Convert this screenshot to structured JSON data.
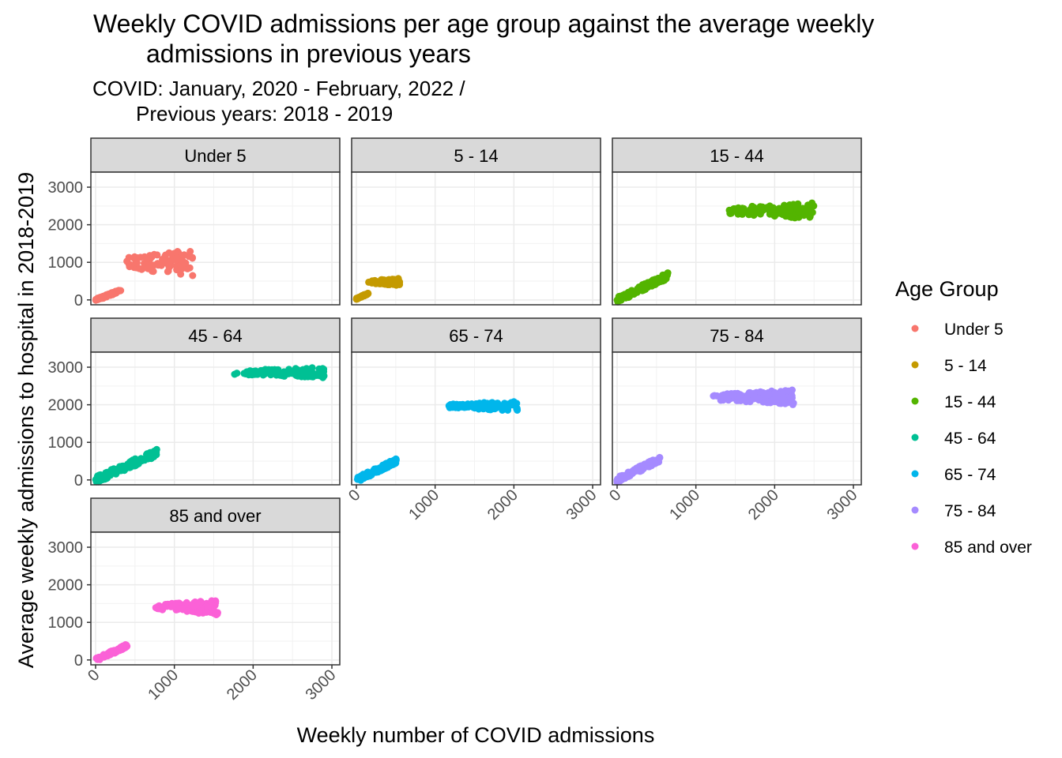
{
  "chart_data": {
    "type": "scatter",
    "title": "Weekly COVID admissions per age group against the average weekly admissions in previous years",
    "title_lines": [
      "Weekly COVID admissions per age group against the average weekly",
      "admissions in previous years"
    ],
    "subtitle_lines": [
      "COVID: January, 2020 - February, 2022 /",
      "Previous years: 2018 - 2019"
    ],
    "xlabel": "Weekly number of COVID admissions",
    "ylabel": "Average weekly admissions to hospital in 2018-2019",
    "xlim": [
      0,
      3000
    ],
    "ylim": [
      0,
      3000
    ],
    "x_ticks": [
      "0",
      "1000",
      "2000",
      "3000"
    ],
    "y_ticks": [
      "0",
      "1000",
      "2000",
      "3000"
    ],
    "grid": true,
    "legend": {
      "title": "Age Group",
      "position": "right",
      "items": [
        {
          "label": "Under 5",
          "color": "#F8766D"
        },
        {
          "label": "5 - 14",
          "color": "#C49A00"
        },
        {
          "label": "15 - 44",
          "color": "#53B400"
        },
        {
          "label": "45 - 64",
          "color": "#00C094"
        },
        {
          "label": "65 - 74",
          "color": "#00B6EB"
        },
        {
          "label": "75 - 84",
          "color": "#A58AFF"
        },
        {
          "label": "85 and over",
          "color": "#FB61D7"
        }
      ]
    },
    "panels": [
      {
        "name": "Under 5",
        "color": "#F8766D",
        "clusters": [
          {
            "x": [
              0,
              320
            ],
            "y": [
              0,
              250
            ],
            "n": 70,
            "slope": 0.75
          },
          {
            "x": [
              350,
              1250
            ],
            "y": [
              620,
              1350
            ],
            "n": 90,
            "slope": 0
          }
        ]
      },
      {
        "name": "5 - 14",
        "color": "#C49A00",
        "clusters": [
          {
            "x": [
              0,
              150
            ],
            "y": [
              30,
              170
            ],
            "n": 40,
            "slope": 0.8
          },
          {
            "x": [
              150,
              560
            ],
            "y": [
              380,
              580
            ],
            "n": 60,
            "slope": 0
          }
        ]
      },
      {
        "name": "15 - 44",
        "color": "#53B400",
        "clusters": [
          {
            "x": [
              0,
              650
            ],
            "y": [
              0,
              650
            ],
            "n": 130,
            "slope": 0.95
          },
          {
            "x": [
              1400,
              2500
            ],
            "y": [
              2150,
              2600
            ],
            "n": 120,
            "slope": 0
          }
        ]
      },
      {
        "name": "45 - 64",
        "color": "#00C094",
        "clusters": [
          {
            "x": [
              0,
              800
            ],
            "y": [
              0,
              750
            ],
            "n": 130,
            "slope": 0.9
          },
          {
            "x": [
              1750,
              2900
            ],
            "y": [
              2720,
              3000
            ],
            "n": 130,
            "slope": 0
          }
        ]
      },
      {
        "name": "65 - 74",
        "color": "#00B6EB",
        "clusters": [
          {
            "x": [
              0,
              520
            ],
            "y": [
              0,
              520
            ],
            "n": 100,
            "slope": 1.0
          },
          {
            "x": [
              1150,
              2050
            ],
            "y": [
              1830,
              2100
            ],
            "n": 110,
            "slope": 0
          }
        ]
      },
      {
        "name": "75 - 84",
        "color": "#A58AFF",
        "clusters": [
          {
            "x": [
              0,
              550
            ],
            "y": [
              0,
              560
            ],
            "n": 100,
            "slope": 0.95
          },
          {
            "x": [
              1200,
              2250
            ],
            "y": [
              2000,
              2400
            ],
            "n": 120,
            "slope": 0
          }
        ]
      },
      {
        "name": "85 and over",
        "color": "#FB61D7",
        "clusters": [
          {
            "x": [
              0,
              400
            ],
            "y": [
              0,
              380
            ],
            "n": 90,
            "slope": 0.9
          },
          {
            "x": [
              750,
              1550
            ],
            "y": [
              1200,
              1600
            ],
            "n": 110,
            "slope": 0
          }
        ]
      }
    ]
  }
}
